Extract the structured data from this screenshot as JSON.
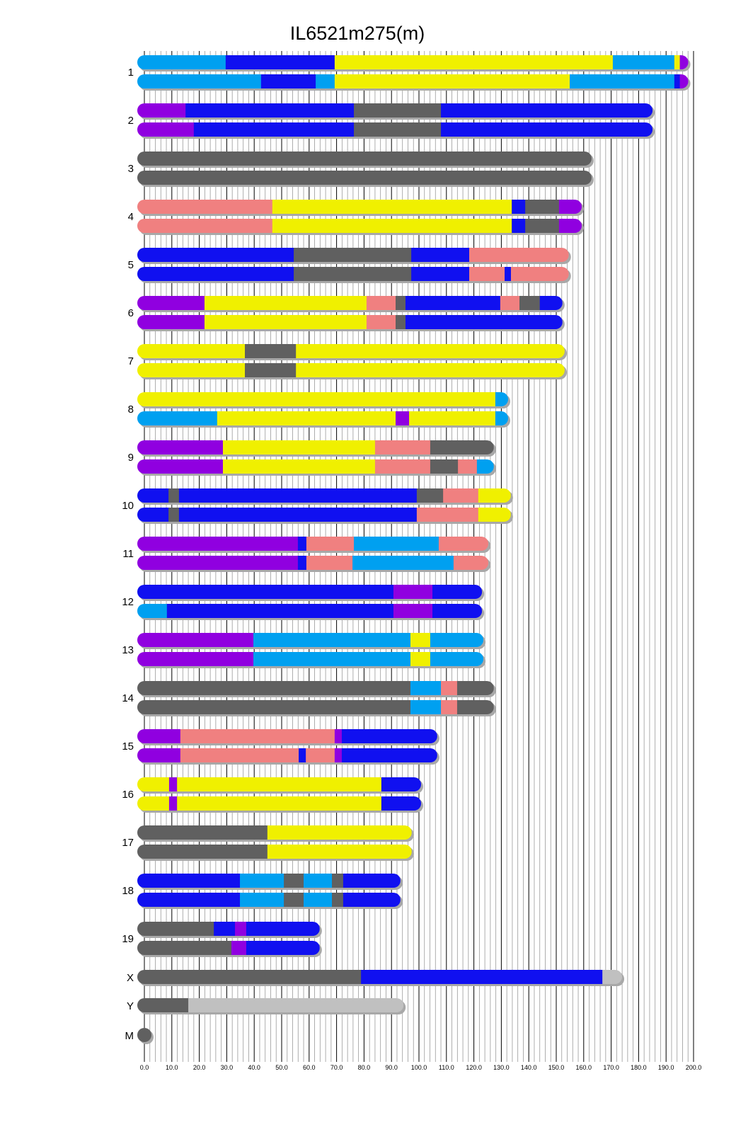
{
  "chart_data": {
    "type": "bar",
    "subtype": "chromosome-painting",
    "title": "IL6521m275(m)",
    "xlabel": "",
    "ylabel": "",
    "xlim": [
      0,
      200
    ],
    "x_ticks": [
      "0.0",
      "10.0",
      "20.0",
      "30.0",
      "40.0",
      "50.0",
      "60.0",
      "70.0",
      "80.0",
      "90.0",
      "100.0",
      "110.0",
      "120.0",
      "130.0",
      "140.0",
      "150.0",
      "160.0",
      "170.0",
      "180.0",
      "190.0",
      "200.0"
    ],
    "grid": true,
    "colors": {
      "lightblue": "#00a0f0",
      "blue": "#1010f0",
      "yellow": "#f0f000",
      "purple": "#9000e0",
      "gray": "#606060",
      "salmon": "#f08080",
      "lightgray": "#c0c0c0"
    },
    "chromosomes": [
      {
        "name": "1",
        "haplotypes": [
          [
            [
              "lightblue",
              0,
              29.6
            ],
            [
              "blue",
              29.6,
              69.3
            ],
            [
              "yellow",
              69.3,
              170.6
            ],
            [
              "lightblue",
              170.6,
              193
            ],
            [
              "yellow",
              193,
              195
            ],
            [
              "purple",
              195,
              195.5
            ]
          ],
          [
            [
              "lightblue",
              0,
              42.5
            ],
            [
              "blue",
              42.5,
              62.4
            ],
            [
              "lightblue",
              62.4,
              69.3
            ],
            [
              "yellow",
              69.3,
              154.9
            ],
            [
              "lightblue",
              154.9,
              193
            ],
            [
              "blue",
              193,
              195
            ],
            [
              "purple",
              195,
              195.5
            ]
          ]
        ]
      },
      {
        "name": "2",
        "haplotypes": [
          [
            [
              "purple",
              0,
              15
            ],
            [
              "blue",
              15,
              76.3
            ],
            [
              "gray",
              76.3,
              108
            ],
            [
              "blue",
              108,
              182.5
            ]
          ],
          [
            [
              "purple",
              0,
              18
            ],
            [
              "blue",
              18,
              76.3
            ],
            [
              "gray",
              76.3,
              108
            ],
            [
              "blue",
              108,
              182.5
            ]
          ]
        ]
      },
      {
        "name": "3",
        "haplotypes": [
          [
            [
              "gray",
              0,
              160.3
            ]
          ],
          [
            [
              "gray",
              0,
              160.3
            ]
          ]
        ]
      },
      {
        "name": "4",
        "haplotypes": [
          [
            [
              "salmon",
              0,
              46.6
            ],
            [
              "yellow",
              46.6,
              133.8
            ],
            [
              "blue",
              133.8,
              138.7
            ],
            [
              "gray",
              138.7,
              151
            ],
            [
              "purple",
              151,
              156.7
            ]
          ],
          [
            [
              "salmon",
              0,
              46.6
            ],
            [
              "yellow",
              46.6,
              133.8
            ],
            [
              "blue",
              133.8,
              138.7
            ],
            [
              "gray",
              138.7,
              151
            ],
            [
              "purple",
              151,
              156.7
            ]
          ]
        ]
      },
      {
        "name": "5",
        "haplotypes": [
          [
            [
              "blue",
              0,
              54.4
            ],
            [
              "gray",
              54.4,
              97.2
            ],
            [
              "blue",
              97.2,
              118.3
            ],
            [
              "salmon",
              118.3,
              152
            ]
          ],
          [
            [
              "blue",
              0,
              54.4
            ],
            [
              "gray",
              54.4,
              97.2
            ],
            [
              "blue",
              97.2,
              118.3
            ],
            [
              "salmon",
              118.3,
              131.2
            ],
            [
              "blue",
              131.2,
              133.5
            ],
            [
              "salmon",
              133.5,
              152
            ]
          ]
        ]
      },
      {
        "name": "6",
        "haplotypes": [
          [
            [
              "purple",
              0,
              21.9
            ],
            [
              "yellow",
              21.9,
              80.9
            ],
            [
              "salmon",
              80.9,
              91.5
            ],
            [
              "gray",
              91.5,
              95.1
            ],
            [
              "blue",
              95.1,
              129.6
            ],
            [
              "salmon",
              129.6,
              136.6
            ],
            [
              "gray",
              136.6,
              144
            ],
            [
              "blue",
              144,
              149.7
            ]
          ],
          [
            [
              "purple",
              0,
              21.9
            ],
            [
              "yellow",
              21.9,
              80.9
            ],
            [
              "salmon",
              80.9,
              91.5
            ],
            [
              "gray",
              91.5,
              95.1
            ],
            [
              "blue",
              95.1,
              149.7
            ]
          ]
        ]
      },
      {
        "name": "7",
        "haplotypes": [
          [
            [
              "yellow",
              0,
              36.6
            ],
            [
              "gray",
              36.6,
              55.2
            ],
            [
              "yellow",
              55.2,
              150.5
            ]
          ],
          [
            [
              "yellow",
              0,
              36.6
            ],
            [
              "gray",
              36.6,
              55.2
            ],
            [
              "yellow",
              55.2,
              150.5
            ]
          ]
        ]
      },
      {
        "name": "8",
        "haplotypes": [
          [
            [
              "yellow",
              0,
              127.8
            ],
            [
              "lightblue",
              127.8,
              129.9
            ]
          ],
          [
            [
              "lightblue",
              0,
              26.5
            ],
            [
              "yellow",
              26.5,
              91.5
            ],
            [
              "purple",
              91.5,
              96.4
            ],
            [
              "yellow",
              96.4,
              127.8
            ],
            [
              "lightblue",
              127.8,
              129.9
            ]
          ]
        ]
      },
      {
        "name": "9",
        "haplotypes": [
          [
            [
              "purple",
              0,
              28.6
            ],
            [
              "yellow",
              28.6,
              84
            ],
            [
              "salmon",
              84,
              104.1
            ],
            [
              "gray",
              104.1,
              124.7
            ]
          ],
          [
            [
              "purple",
              0,
              28.6
            ],
            [
              "yellow",
              28.6,
              84
            ],
            [
              "salmon",
              84,
              104.1
            ],
            [
              "gray",
              104.1,
              114.2
            ],
            [
              "salmon",
              114.2,
              121.1
            ],
            [
              "lightblue",
              121.1,
              124.7
            ]
          ]
        ]
      },
      {
        "name": "10",
        "haplotypes": [
          [
            [
              "blue",
              0,
              8.8
            ],
            [
              "gray",
              8.8,
              12.6
            ],
            [
              "blue",
              12.6,
              99.2
            ],
            [
              "gray",
              99.2,
              108.8
            ],
            [
              "salmon",
              108.8,
              121.6
            ],
            [
              "yellow",
              121.6,
              130.9
            ]
          ],
          [
            [
              "blue",
              0,
              8.8
            ],
            [
              "gray",
              8.8,
              12.6
            ],
            [
              "blue",
              12.6,
              99.2
            ],
            [
              "salmon",
              99.2,
              121.6
            ],
            [
              "yellow",
              121.6,
              130.9
            ]
          ]
        ]
      },
      {
        "name": "11",
        "haplotypes": [
          [
            [
              "purple",
              0,
              55.9
            ],
            [
              "blue",
              55.9,
              59
            ],
            [
              "salmon",
              59,
              76.3
            ],
            [
              "lightblue",
              76.3,
              107.2
            ],
            [
              "salmon",
              107.2,
              122.7
            ]
          ],
          [
            [
              "purple",
              0,
              55.9
            ],
            [
              "blue",
              55.9,
              59
            ],
            [
              "salmon",
              59,
              75.8
            ],
            [
              "lightblue",
              75.8,
              112.6
            ],
            [
              "salmon",
              112.6,
              122.7
            ]
          ]
        ]
      },
      {
        "name": "12",
        "haplotypes": [
          [
            [
              "blue",
              0,
              90.7
            ],
            [
              "purple",
              90.7,
              104.9
            ],
            [
              "blue",
              104.9,
              120.4
            ]
          ],
          [
            [
              "lightblue",
              0,
              8.2
            ],
            [
              "blue",
              8.2,
              90.7
            ],
            [
              "purple",
              90.7,
              104.9
            ],
            [
              "blue",
              104.9,
              120.4
            ]
          ]
        ]
      },
      {
        "name": "13",
        "haplotypes": [
          [
            [
              "purple",
              0,
              39.7
            ],
            [
              "lightblue",
              39.7,
              96.9
            ],
            [
              "yellow",
              96.9,
              104.1
            ],
            [
              "lightblue",
              104.1,
              120.9
            ]
          ],
          [
            [
              "purple",
              0,
              39.7
            ],
            [
              "lightblue",
              39.7,
              96.9
            ],
            [
              "yellow",
              96.9,
              104.1
            ],
            [
              "lightblue",
              104.1,
              120.9
            ]
          ]
        ]
      },
      {
        "name": "14",
        "haplotypes": [
          [
            [
              "gray",
              0,
              96.9
            ],
            [
              "lightblue",
              96.9,
              108
            ],
            [
              "salmon",
              108,
              113.9
            ],
            [
              "gray",
              113.9,
              124.7
            ]
          ],
          [
            [
              "gray",
              0,
              96.9
            ],
            [
              "lightblue",
              96.9,
              108
            ],
            [
              "salmon",
              108,
              113.9
            ],
            [
              "gray",
              113.9,
              124.7
            ]
          ]
        ]
      },
      {
        "name": "15",
        "haplotypes": [
          [
            [
              "purple",
              0,
              13.1
            ],
            [
              "salmon",
              13.1,
              69.3
            ],
            [
              "purple",
              69.3,
              71.9
            ],
            [
              "blue",
              71.9,
              104.1
            ]
          ],
          [
            [
              "purple",
              0,
              13.1
            ],
            [
              "salmon",
              13.1,
              56.2
            ],
            [
              "blue",
              56.2,
              58.8
            ],
            [
              "salmon",
              58.8,
              69.3
            ],
            [
              "purple",
              69.3,
              71.9
            ],
            [
              "blue",
              71.9,
              104.1
            ]
          ]
        ]
      },
      {
        "name": "16",
        "haplotypes": [
          [
            [
              "yellow",
              0,
              9
            ],
            [
              "purple",
              9,
              11.9
            ],
            [
              "yellow",
              11.9,
              86.3
            ],
            [
              "blue",
              86.3,
              98.2
            ]
          ],
          [
            [
              "yellow",
              0,
              9
            ],
            [
              "purple",
              9,
              11.9
            ],
            [
              "yellow",
              11.9,
              86.3
            ],
            [
              "blue",
              86.3,
              98.2
            ]
          ]
        ]
      },
      {
        "name": "17",
        "haplotypes": [
          [
            [
              "gray",
              0,
              44.8
            ],
            [
              "yellow",
              44.8,
              94.8
            ]
          ],
          [
            [
              "gray",
              0,
              44.8
            ],
            [
              "yellow",
              44.8,
              94.8
            ]
          ]
        ]
      },
      {
        "name": "18",
        "haplotypes": [
          [
            [
              "blue",
              0,
              34.8
            ],
            [
              "lightblue",
              34.8,
              50.8
            ],
            [
              "gray",
              50.8,
              58
            ],
            [
              "lightblue",
              58,
              68.3
            ],
            [
              "gray",
              68.3,
              72.4
            ],
            [
              "blue",
              72.4,
              90.7
            ]
          ],
          [
            [
              "blue",
              0,
              34.8
            ],
            [
              "lightblue",
              34.8,
              50.8
            ],
            [
              "gray",
              50.8,
              58
            ],
            [
              "lightblue",
              58,
              68.3
            ],
            [
              "gray",
              68.3,
              72.4
            ],
            [
              "blue",
              72.4,
              90.7
            ]
          ]
        ]
      },
      {
        "name": "19",
        "haplotypes": [
          [
            [
              "gray",
              0,
              25.3
            ],
            [
              "blue",
              25.3,
              33
            ],
            [
              "purple",
              33,
              37.1
            ],
            [
              "blue",
              37.1,
              61.3
            ]
          ],
          [
            [
              "gray",
              0,
              31.7
            ],
            [
              "purple",
              31.7,
              37.1
            ],
            [
              "blue",
              37.1,
              61.3
            ]
          ]
        ]
      },
      {
        "name": "X",
        "haplotypes": [
          [
            [
              "gray",
              0,
              78.9
            ],
            [
              "blue",
              78.9,
              166.8
            ],
            [
              "lightgray",
              166.8,
              171.4
            ]
          ]
        ]
      },
      {
        "name": "Y",
        "haplotypes": [
          [
            [
              "gray",
              0,
              16
            ],
            [
              "lightgray",
              16,
              91.8
            ]
          ]
        ]
      },
      {
        "name": "M",
        "haplotypes": [
          [
            [
              "gray",
              0,
              0.02
            ]
          ]
        ]
      }
    ]
  }
}
